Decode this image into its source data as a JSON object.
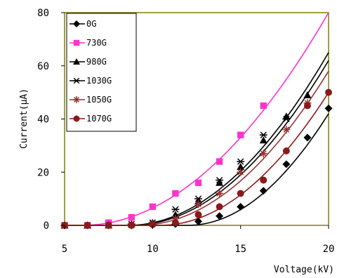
{
  "chart_data": {
    "type": "scatter",
    "title": "",
    "xlabel": "Voltage(kV)",
    "ylabel": "Current(μA)",
    "xlim": [
      5,
      20
    ],
    "ylim": [
      0,
      80
    ],
    "xticks": [
      5,
      10,
      15,
      20
    ],
    "yticks": [
      0,
      20,
      40,
      60,
      80
    ],
    "grid": false,
    "legend_position": "top-left",
    "series": [
      {
        "name": "0G",
        "color": "#000000",
        "marker": "diamond",
        "points": [
          [
            5,
            0
          ],
          [
            6.3,
            0
          ],
          [
            7.5,
            0
          ],
          [
            8.8,
            0
          ],
          [
            10,
            0.3
          ],
          [
            11.3,
            0.5
          ],
          [
            12.6,
            1.5
          ],
          [
            13.8,
            3.5
          ],
          [
            15,
            7
          ],
          [
            16.3,
            13
          ],
          [
            17.6,
            23
          ],
          [
            18.8,
            33
          ],
          [
            20,
            44
          ]
        ],
        "fit": {
          "start": 12.0,
          "end": 20,
          "peak": 42
        }
      },
      {
        "name": "730G",
        "color": "#ff33cc",
        "marker": "square",
        "points": [
          [
            5,
            0
          ],
          [
            6.3,
            0
          ],
          [
            7.5,
            1
          ],
          [
            8.8,
            3
          ],
          [
            10,
            7
          ],
          [
            11.3,
            12
          ],
          [
            12.6,
            16
          ],
          [
            13.8,
            24
          ],
          [
            15,
            34
          ],
          [
            16.3,
            45
          ]
        ],
        "fit": {
          "start": 6.0,
          "end": 20,
          "peak": 80
        }
      },
      {
        "name": "980G",
        "color": "#000000",
        "marker": "triangle",
        "points": [
          [
            5,
            0
          ],
          [
            6.3,
            0
          ],
          [
            7.5,
            0
          ],
          [
            8.8,
            0.5
          ],
          [
            10,
            1
          ],
          [
            11.3,
            4
          ],
          [
            12.6,
            9
          ],
          [
            13.8,
            16
          ],
          [
            15,
            22
          ],
          [
            16.3,
            32
          ],
          [
            17.6,
            41
          ],
          [
            18.8,
            49
          ]
        ],
        "fit": {
          "start": 8.8,
          "end": 20,
          "peak": 62
        }
      },
      {
        "name": "1030G",
        "color": "#000000",
        "marker": "asterisk",
        "points": [
          [
            5,
            0
          ],
          [
            6.3,
            0
          ],
          [
            7.5,
            0
          ],
          [
            8.8,
            0.5
          ],
          [
            10,
            1
          ],
          [
            11.3,
            6
          ],
          [
            12.6,
            10
          ],
          [
            13.8,
            17
          ],
          [
            15,
            24
          ],
          [
            16.3,
            34
          ],
          [
            17.6,
            40
          ]
        ],
        "fit": {
          "start": 8.6,
          "end": 20,
          "peak": 65
        }
      },
      {
        "name": "1050G",
        "color": "#993333",
        "marker": "star",
        "points": [
          [
            5,
            0
          ],
          [
            6.3,
            0
          ],
          [
            7.5,
            0
          ],
          [
            8.8,
            0
          ],
          [
            10,
            0.5
          ],
          [
            11.3,
            2.5
          ],
          [
            12.6,
            8
          ],
          [
            13.8,
            12
          ],
          [
            15,
            20
          ],
          [
            16.3,
            27
          ],
          [
            17.6,
            36
          ],
          [
            18.8,
            46
          ]
        ],
        "fit": {
          "start": 9.2,
          "end": 20,
          "peak": 58
        }
      },
      {
        "name": "1070G",
        "color": "#8b1a1a",
        "marker": "circle",
        "points": [
          [
            5,
            0
          ],
          [
            6.3,
            0
          ],
          [
            7.5,
            0
          ],
          [
            8.8,
            0
          ],
          [
            10,
            0.3
          ],
          [
            11.3,
            1
          ],
          [
            12.6,
            4
          ],
          [
            13.8,
            7
          ],
          [
            15,
            12
          ],
          [
            16.3,
            17
          ],
          [
            17.6,
            28
          ],
          [
            18.8,
            45
          ],
          [
            20,
            50
          ]
        ],
        "fit": {
          "start": 10.4,
          "end": 20,
          "peak": 50
        }
      }
    ]
  }
}
